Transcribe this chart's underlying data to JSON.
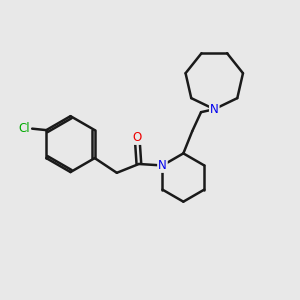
{
  "background_color": "#e8e8e8",
  "bond_color": "#1a1a1a",
  "atom_colors": {
    "N": "#0000ee",
    "O": "#ee0000",
    "Cl": "#00aa00"
  },
  "bond_width": 1.8,
  "figsize": [
    3.0,
    3.0
  ],
  "dpi": 100,
  "xlim": [
    0,
    10
  ],
  "ylim": [
    0,
    10
  ]
}
